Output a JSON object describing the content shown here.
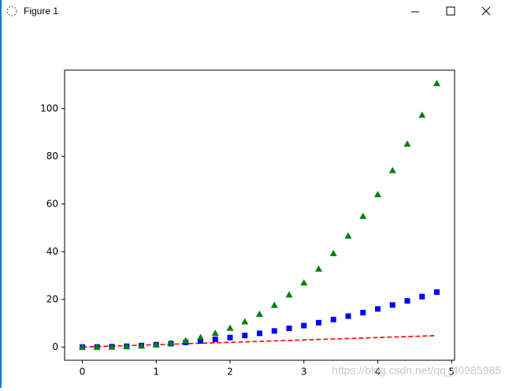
{
  "window": {
    "title": "Figure 1"
  },
  "watermark": "https://blog.csdn.net/qq_40985985",
  "chart_data": {
    "type": "line",
    "x": [
      0,
      0.2,
      0.4,
      0.6,
      0.8,
      1,
      1.2,
      1.4,
      1.6,
      1.8,
      2,
      2.2,
      2.4,
      2.6,
      2.8,
      3,
      3.2,
      3.4,
      3.6,
      3.8,
      4,
      4.2,
      4.4,
      4.6,
      4.8
    ],
    "series": [
      {
        "color": "#ff0000",
        "style": "dashed",
        "values": [
          0,
          0.2,
          0.4,
          0.6,
          0.8,
          1,
          1.2,
          1.4,
          1.6,
          1.8,
          2,
          2.2,
          2.4,
          2.6,
          2.8,
          3,
          3.2,
          3.4,
          3.6,
          3.8,
          4,
          4.2,
          4.4,
          4.6,
          4.8
        ]
      },
      {
        "color": "#0000ff",
        "style": "square",
        "values": [
          0,
          0.04,
          0.16,
          0.36,
          0.64,
          1,
          1.44,
          1.96,
          2.56,
          3.24,
          4,
          4.84,
          5.76,
          6.76,
          7.84,
          9,
          10.24,
          11.56,
          12.96,
          14.44,
          16,
          17.64,
          19.36,
          21.16,
          23.04
        ]
      },
      {
        "color": "#008000",
        "style": "triangle",
        "values": [
          0,
          0.008,
          0.064,
          0.216,
          0.512,
          1,
          1.728,
          2.744,
          4.096,
          5.832,
          8,
          10.648,
          13.824,
          17.576,
          21.952,
          27,
          32.768,
          39.304,
          46.656,
          54.872,
          64,
          74.088,
          85.184,
          97.336,
          110.592
        ]
      }
    ],
    "xlim": [
      -0.24,
      5.04
    ],
    "xticks": [
      0,
      1,
      2,
      3,
      4,
      5
    ],
    "ylim": [
      -5.5296,
      116.1216
    ],
    "yticks": [
      0,
      20,
      40,
      60,
      80,
      100
    ]
  }
}
